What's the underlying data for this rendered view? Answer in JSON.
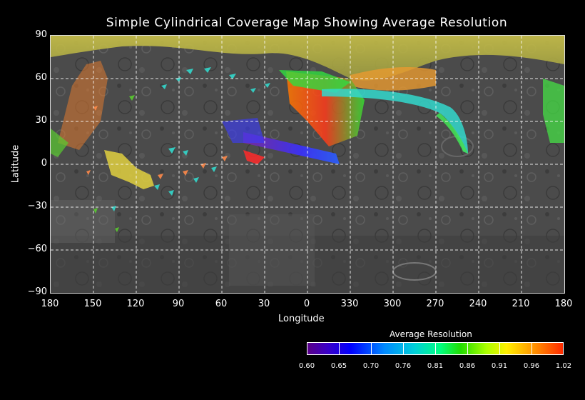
{
  "title": "Simple Cylindrical Coverage Map Showing Average Resolution",
  "x_axis_title": "Longitude",
  "y_axis_title": "Latitude",
  "colorbar_title": "Average Resolution",
  "colorbar_labels": [
    "0.60",
    "0.65",
    "0.70",
    "0.76",
    "0.81",
    "0.86",
    "0.91",
    "0.96",
    "1.02"
  ],
  "x_ticks": [
    "180",
    "150",
    "120",
    "90",
    "60",
    "30",
    "0",
    "330",
    "300",
    "270",
    "240",
    "210",
    "180"
  ],
  "y_ticks": [
    "90",
    "60",
    "30",
    "0",
    "−30",
    "−60",
    "−90"
  ],
  "colors": {
    "grid": "#ffffff",
    "surface": "#4a4a4a",
    "north_band": "#c8b84a"
  }
}
